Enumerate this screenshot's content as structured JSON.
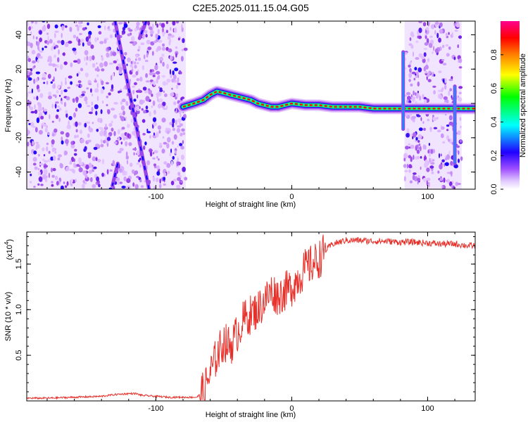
{
  "figure": {
    "title": "C2E5.2025.011.15.04.G05"
  },
  "chart_data": [
    {
      "type": "heatmap",
      "title": "C2E5.2025.011.15.04.G05",
      "xlabel": "Height of straight line (km)",
      "ylabel": "Frequency (Hz)",
      "xlim": [
        -195,
        135
      ],
      "ylim": [
        -50,
        48
      ],
      "x_ticks": [
        -100,
        0,
        100
      ],
      "x_tick_labels": [
        "-100",
        "0",
        "100"
      ],
      "y_ticks": [
        -40,
        -20,
        0,
        20,
        40
      ],
      "y_tick_labels": [
        "-40",
        "-20",
        "0",
        "20",
        "40"
      ],
      "colorbar": {
        "label": "Normalized spectral amplitude",
        "range": [
          0,
          1
        ],
        "ticks": [
          0.0,
          0.2,
          0.4,
          0.6,
          0.8
        ],
        "tick_labels": [
          "0.0",
          "0.2",
          "0.4",
          "0.6",
          "0.8"
        ],
        "colormap": [
          "#ffffff",
          "#dcb4ff",
          "#8a2be2",
          "#0000ff",
          "#00ffff",
          "#00ff00",
          "#ffff00",
          "#ff8000",
          "#ff0000",
          "#ff00aa"
        ]
      },
      "noise_regions_x": [
        [
          -195,
          -78
        ],
        [
          83,
          125
        ]
      ],
      "signal_track": {
        "x": [
          -80,
          -72,
          -65,
          -60,
          -55,
          -50,
          -45,
          -40,
          -35,
          -30,
          -25,
          -20,
          -15,
          -10,
          -5,
          0,
          10,
          20,
          30,
          40,
          50,
          60,
          70,
          75,
          78,
          82,
          90,
          100,
          110,
          118,
          120,
          125,
          130,
          135
        ],
        "y": [
          -2,
          0,
          2,
          5,
          7,
          6,
          5,
          4,
          3,
          2,
          0,
          -1,
          -2,
          -2,
          -1,
          0,
          -1,
          -1,
          -2,
          -2,
          -2,
          -3,
          -3,
          -3,
          -3,
          -3,
          -3,
          -3,
          -3,
          -3,
          -3,
          -3,
          -3,
          -3
        ]
      },
      "diagonal_tracks": [
        {
          "x": [
            -130,
            -105
          ],
          "y": [
            48,
            -50
          ]
        },
        {
          "x": [
            -107,
            -112
          ],
          "y": [
            48,
            38
          ]
        },
        {
          "x": [
            -128,
            -132
          ],
          "y": [
            -35,
            -48
          ]
        }
      ],
      "vertical_spikes": [
        {
          "x": 82,
          "y_range": [
            -15,
            30
          ]
        },
        {
          "x": 120,
          "y_range": [
            -35,
            10
          ]
        }
      ]
    },
    {
      "type": "line",
      "xlabel": "Height of straight line (km)",
      "ylabel": "SNR (10 * v/v)",
      "y_multiplier": "(x10",
      "y_multiplier_exp": "4",
      "y_multiplier_close": ")",
      "xlim": [
        -195,
        135
      ],
      "ylim": [
        0,
        1.85
      ],
      "x_ticks": [
        -100,
        0,
        100
      ],
      "x_tick_labels": [
        "-100",
        "0",
        "100"
      ],
      "y_ticks": [
        0.5,
        1.0,
        1.5
      ],
      "y_tick_labels": [
        "0.5",
        "1.0",
        "1.5"
      ],
      "series": [
        {
          "color": "#e8302a",
          "x": [
            -195,
            -180,
            -160,
            -140,
            -130,
            -120,
            -115,
            -110,
            -100,
            -90,
            -80,
            -70,
            -65,
            -60,
            -55,
            -50,
            -45,
            -40,
            -35,
            -30,
            -25,
            -20,
            -15,
            -10,
            -5,
            0,
            5,
            10,
            15,
            20,
            25,
            30,
            40,
            50,
            60,
            70,
            80,
            90,
            100,
            110,
            120,
            130,
            135
          ],
          "y": [
            0.03,
            0.03,
            0.04,
            0.05,
            0.07,
            0.08,
            0.08,
            0.06,
            0.05,
            0.04,
            0.04,
            0.04,
            0.1,
            0.3,
            0.5,
            0.65,
            0.6,
            0.75,
            0.9,
            0.95,
            1.0,
            1.1,
            1.2,
            1.15,
            1.2,
            1.25,
            1.35,
            1.45,
            1.5,
            1.55,
            1.65,
            1.72,
            1.76,
            1.76,
            1.75,
            1.75,
            1.74,
            1.74,
            1.73,
            1.72,
            1.72,
            1.7,
            1.7
          ]
        }
      ]
    }
  ]
}
